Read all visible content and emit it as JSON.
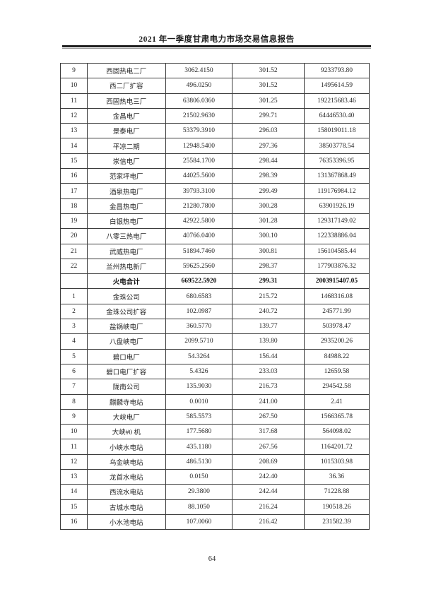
{
  "header": {
    "title": "2021 年一季度甘肃电力市场交易信息报告"
  },
  "footer": {
    "page_number": "64"
  },
  "table": {
    "rows": [
      {
        "no": "9",
        "name": "西固热电二厂",
        "volume": "3062.4150",
        "price": "301.52",
        "amount": "9233793.80"
      },
      {
        "no": "10",
        "name": "西二厂扩容",
        "volume": "496.0250",
        "price": "301.52",
        "amount": "1495614.59"
      },
      {
        "no": "11",
        "name": "西固热电三厂",
        "volume": "63806.0360",
        "price": "301.25",
        "amount": "192215683.46"
      },
      {
        "no": "12",
        "name": "金昌电厂",
        "volume": "21502.9630",
        "price": "299.71",
        "amount": "64446530.40"
      },
      {
        "no": "13",
        "name": "景泰电厂",
        "volume": "53379.3910",
        "price": "296.03",
        "amount": "158019011.18"
      },
      {
        "no": "14",
        "name": "平凉二期",
        "volume": "12948.5400",
        "price": "297.36",
        "amount": "38503778.54"
      },
      {
        "no": "15",
        "name": "崇信电厂",
        "volume": "25584.1700",
        "price": "298.44",
        "amount": "76353396.95"
      },
      {
        "no": "16",
        "name": "范家坪电厂",
        "volume": "44025.5600",
        "price": "298.39",
        "amount": "131367868.49"
      },
      {
        "no": "17",
        "name": "酒泉热电厂",
        "volume": "39793.3100",
        "price": "299.49",
        "amount": "119176984.12"
      },
      {
        "no": "18",
        "name": "金昌热电厂",
        "volume": "21280.7800",
        "price": "300.28",
        "amount": "63901926.19"
      },
      {
        "no": "19",
        "name": "白银热电厂",
        "volume": "42922.5800",
        "price": "301.28",
        "amount": "129317149.02"
      },
      {
        "no": "20",
        "name": "八零三热电厂",
        "volume": "40766.0400",
        "price": "300.10",
        "amount": "122338886.04"
      },
      {
        "no": "21",
        "name": "武威热电厂",
        "volume": "51894.7460",
        "price": "300.81",
        "amount": "156104585.44"
      },
      {
        "no": "22",
        "name": "兰州热电新厂",
        "volume": "59625.2560",
        "price": "298.37",
        "amount": "177903876.32"
      },
      {
        "no": "",
        "name": "火电合计",
        "volume": "669522.5920",
        "price": "299.31",
        "amount": "2003915407.05",
        "total": true
      },
      {
        "no": "1",
        "name": "金珠公司",
        "volume": "680.6583",
        "price": "215.72",
        "amount": "1468316.08"
      },
      {
        "no": "2",
        "name": "金珠公司扩容",
        "volume": "102.0987",
        "price": "240.72",
        "amount": "245771.99"
      },
      {
        "no": "3",
        "name": "盐锅峡电厂",
        "volume": "360.5770",
        "price": "139.77",
        "amount": "503978.47"
      },
      {
        "no": "4",
        "name": "八盘峡电厂",
        "volume": "2099.5710",
        "price": "139.80",
        "amount": "2935200.26"
      },
      {
        "no": "5",
        "name": "碧口电厂",
        "volume": "54.3264",
        "price": "156.44",
        "amount": "84988.22"
      },
      {
        "no": "6",
        "name": "碧口电厂扩容",
        "volume": "5.4326",
        "price": "233.03",
        "amount": "12659.58"
      },
      {
        "no": "7",
        "name": "陇南公司",
        "volume": "135.9030",
        "price": "216.73",
        "amount": "294542.58"
      },
      {
        "no": "8",
        "name": "麒麟寺电站",
        "volume": "0.0010",
        "price": "241.00",
        "amount": "2.41"
      },
      {
        "no": "9",
        "name": "大峡电厂",
        "volume": "585.5573",
        "price": "267.50",
        "amount": "1566365.78"
      },
      {
        "no": "10",
        "name": "大峡#0 机",
        "volume": "177.5680",
        "price": "317.68",
        "amount": "564098.02"
      },
      {
        "no": "11",
        "name": "小峡水电站",
        "volume": "435.1180",
        "price": "267.56",
        "amount": "1164201.72"
      },
      {
        "no": "12",
        "name": "乌金峡电站",
        "volume": "486.5130",
        "price": "208.69",
        "amount": "1015303.98"
      },
      {
        "no": "13",
        "name": "龙首水电站",
        "volume": "0.0150",
        "price": "242.40",
        "amount": "36.36"
      },
      {
        "no": "14",
        "name": "西流水电站",
        "volume": "29.3800",
        "price": "242.44",
        "amount": "71228.88"
      },
      {
        "no": "15",
        "name": "古城水电站",
        "volume": "88.1050",
        "price": "216.24",
        "amount": "190518.26"
      },
      {
        "no": "16",
        "name": "小水池电站",
        "volume": "107.0060",
        "price": "216.42",
        "amount": "231582.39"
      }
    ]
  }
}
